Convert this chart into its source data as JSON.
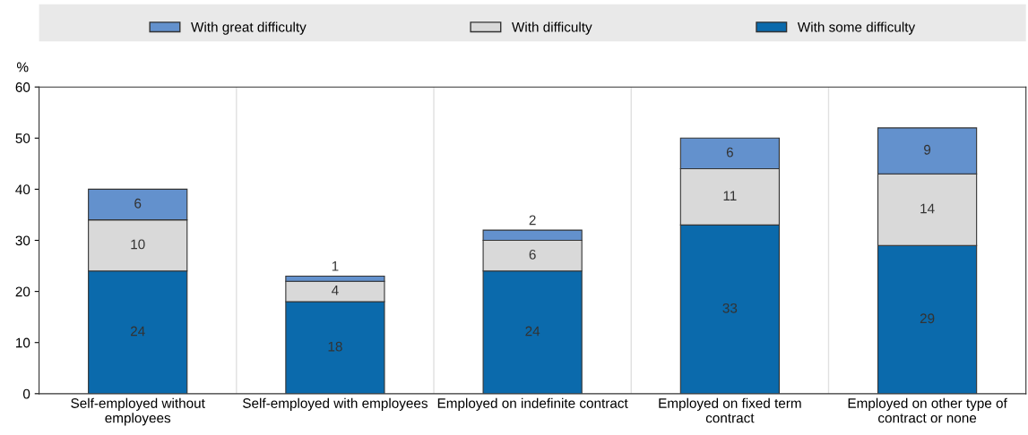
{
  "chart_data": {
    "type": "bar",
    "stacked": true,
    "ylabel": "%",
    "categories": [
      "Self-employed without\nemployees",
      "Self-employed with employees",
      "Employed on indefinite contract",
      "Employed on fixed term\ncontract",
      "Employed on other type of\ncontract or none"
    ],
    "series": [
      {
        "name": "With some difficulty",
        "color": "#0b6aac",
        "values": [
          24,
          18,
          24,
          33,
          29
        ]
      },
      {
        "name": "With difficulty",
        "color": "#d9d9d9",
        "values": [
          10,
          4,
          6,
          11,
          14
        ]
      },
      {
        "name": "With great difficulty",
        "color": "#6391cd",
        "values": [
          6,
          1,
          2,
          6,
          9
        ]
      }
    ],
    "ylim": [
      0,
      60
    ],
    "yticks": [
      0,
      10,
      20,
      30,
      40,
      50,
      60
    ],
    "data_labels": true,
    "grid": "x",
    "legend": "top"
  }
}
